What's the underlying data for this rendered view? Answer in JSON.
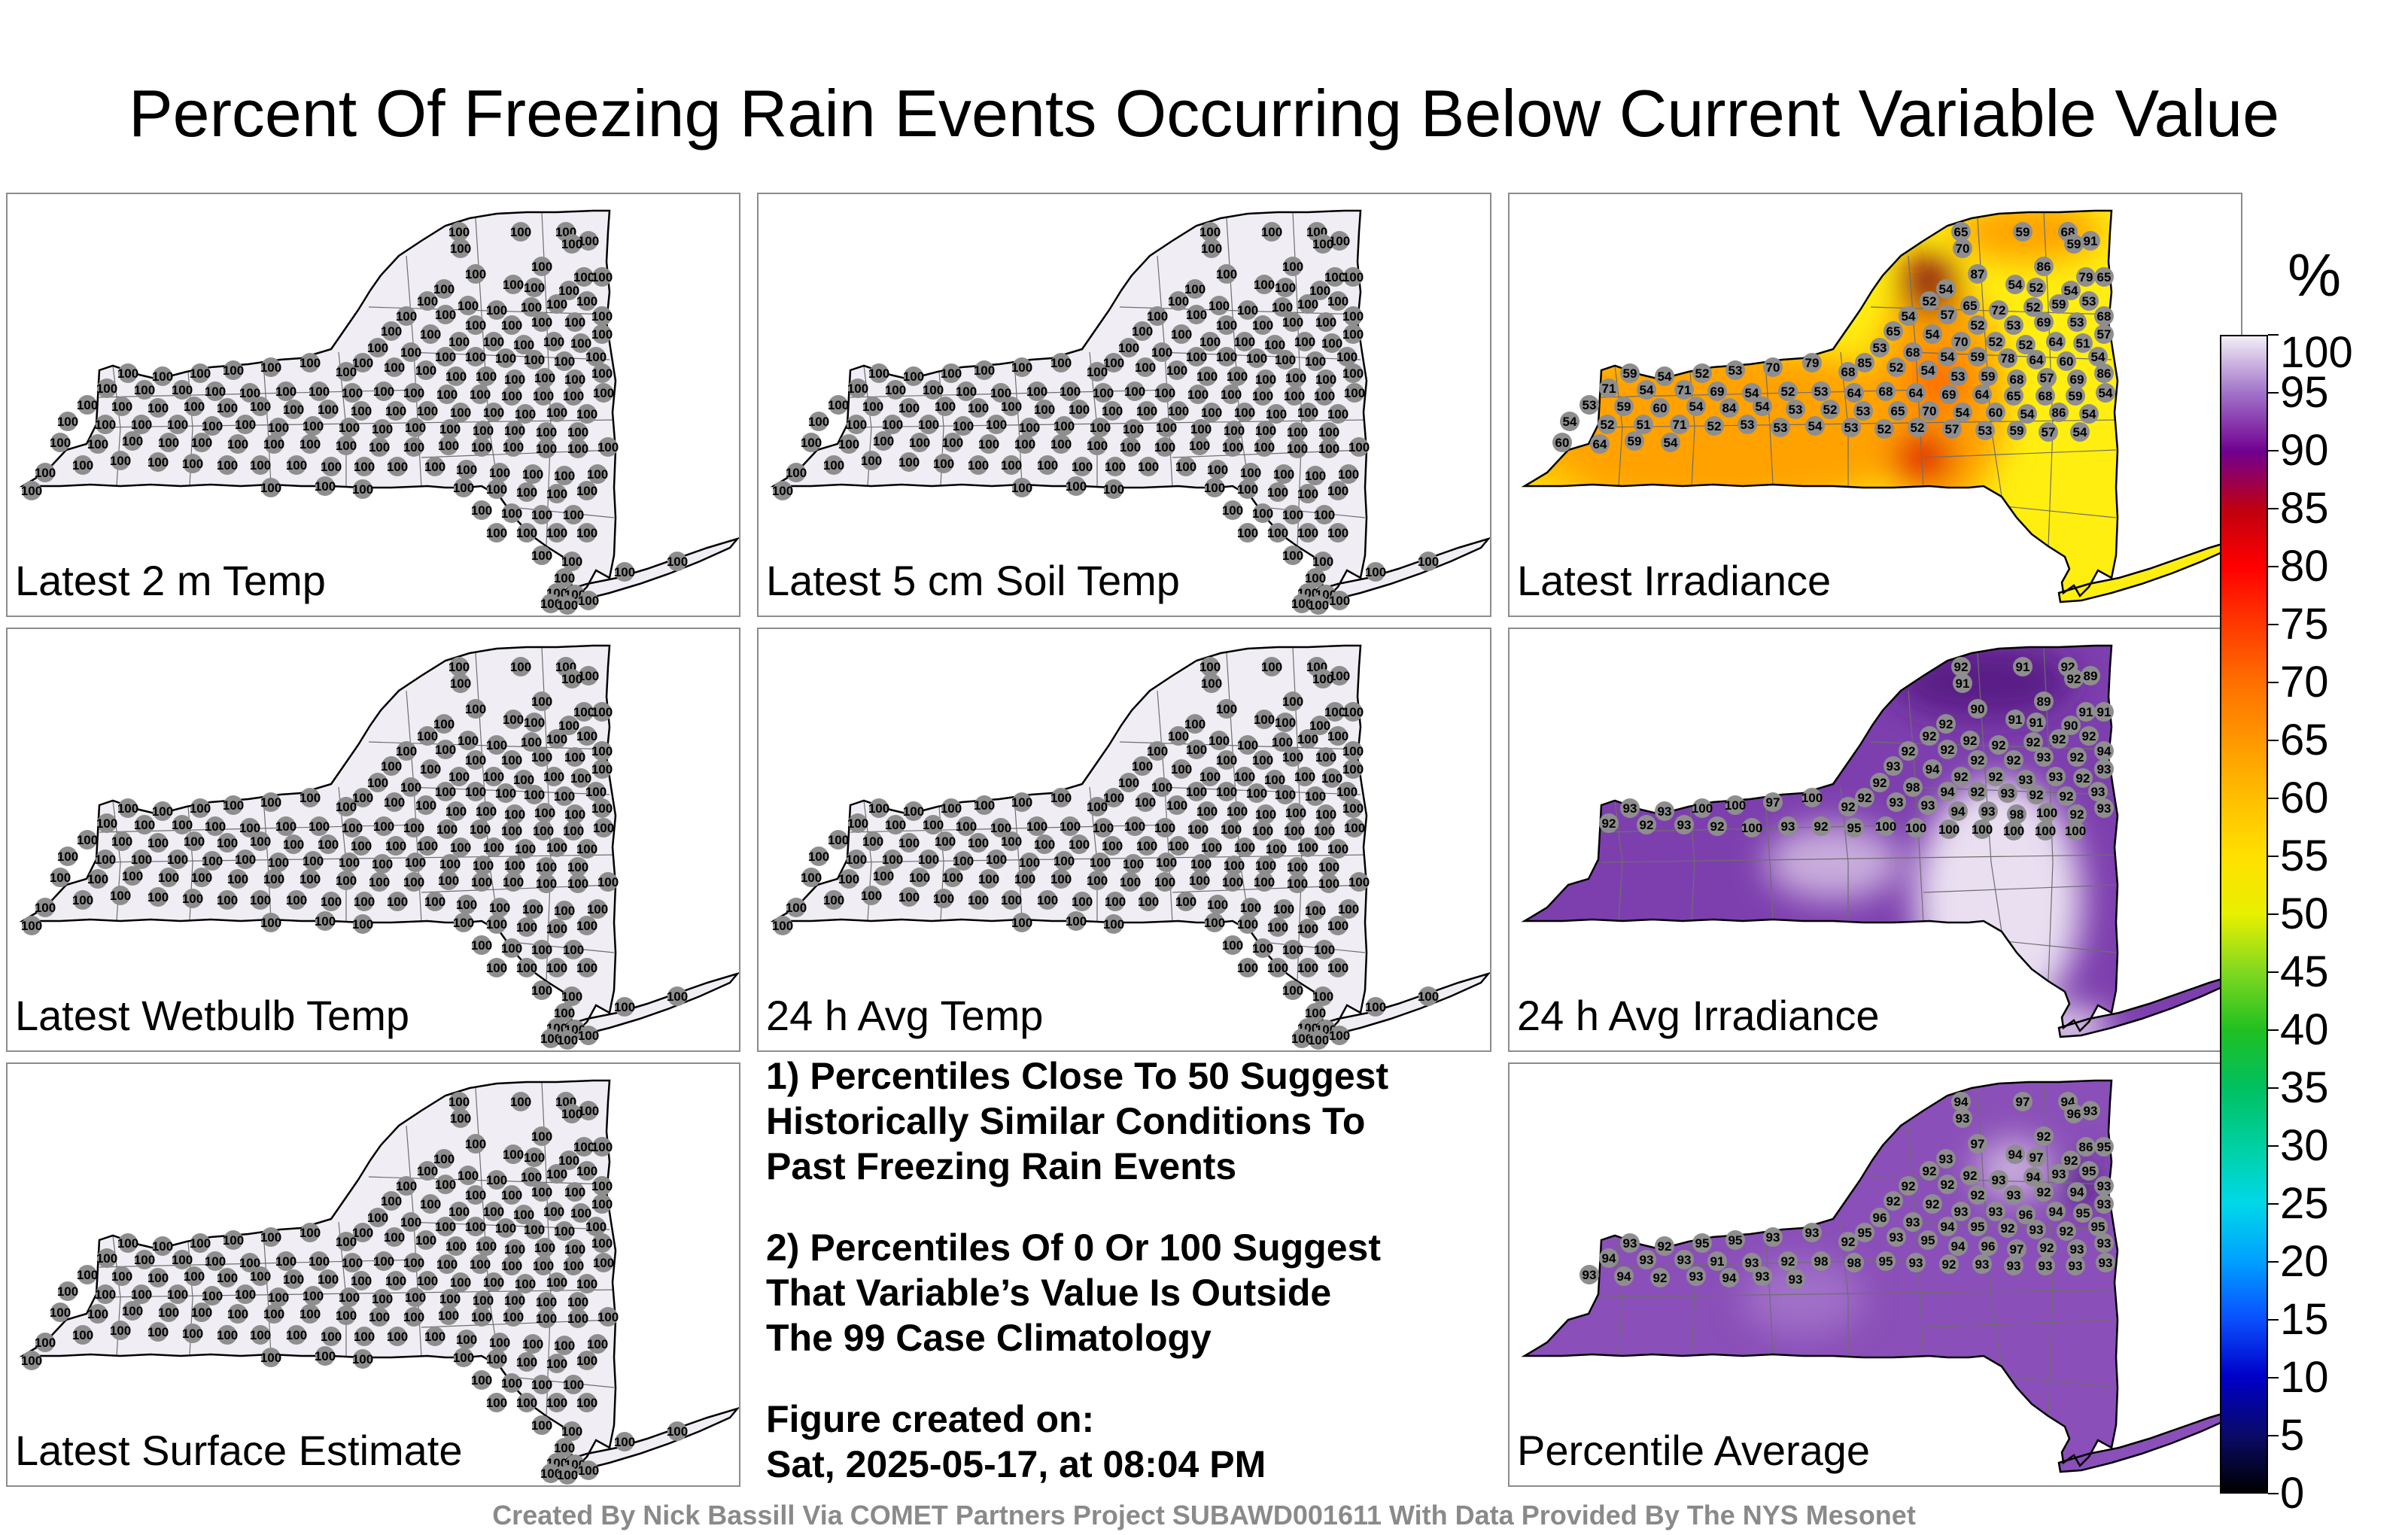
{
  "title": "Percent Of Freezing Rain Events Occurring Below Current Variable Value",
  "panels": [
    {
      "label": "Latest 2 m Temp",
      "mode": "uniform",
      "stations": [
        "100"
      ]
    },
    {
      "label": "Latest 5 cm Soil Temp",
      "mode": "uniform",
      "stations": [
        "100"
      ]
    },
    {
      "label": "Latest Irradiance",
      "mode": "irradiance",
      "stations": [
        "65",
        "59",
        "68",
        "91",
        "70",
        "59",
        "86",
        "87",
        "54",
        "79",
        "54",
        "52",
        "54",
        "65",
        "52",
        "65",
        "72",
        "52",
        "59",
        "53",
        "54",
        "57",
        "52",
        "53",
        "69",
        "53",
        "68",
        "65",
        "54",
        "70",
        "52",
        "52",
        "64",
        "51",
        "57",
        "53",
        "68",
        "54",
        "59",
        "78",
        "64",
        "60",
        "54",
        "85",
        "52",
        "54",
        "53",
        "59",
        "68",
        "57",
        "69",
        "86",
        "59",
        "54",
        "52",
        "53",
        "70",
        "79",
        "68",
        "71",
        "54",
        "71",
        "69",
        "54",
        "52",
        "53",
        "64",
        "68",
        "64",
        "69",
        "64",
        "65",
        "68",
        "59",
        "54",
        "53",
        "59",
        "60",
        "54",
        "84",
        "54",
        "53",
        "52",
        "53",
        "65",
        "70",
        "54",
        "60",
        "54",
        "86",
        "54",
        "54",
        "52",
        "51",
        "71",
        "52",
        "53",
        "53",
        "54",
        "53",
        "52",
        "52",
        "57",
        "53",
        "59",
        "57",
        "54",
        "60",
        "64",
        "59",
        "54"
      ]
    },
    {
      "label": "Latest Wetbulb Temp",
      "mode": "uniform",
      "stations": [
        "100"
      ]
    },
    {
      "label": "24 h Avg Temp",
      "mode": "uniform",
      "stations": [
        "100"
      ]
    },
    {
      "label": "24 h Avg Irradiance",
      "mode": "avgirr",
      "stations": [
        "92",
        "91",
        "92",
        "89",
        "91",
        "92",
        "89",
        "90",
        "91",
        "91",
        "92",
        "91",
        "90",
        "91",
        "92",
        "92",
        "92",
        "92",
        "92",
        "92",
        "92",
        "92",
        "92",
        "92",
        "93",
        "92",
        "94",
        "93",
        "94",
        "92",
        "92",
        "93",
        "93",
        "92",
        "93",
        "92",
        "98",
        "94",
        "92",
        "93",
        "92",
        "92",
        "93",
        "92",
        "93",
        "93",
        "94",
        "93",
        "98",
        "100",
        "92",
        "93",
        "93",
        "93",
        "100",
        "100",
        "97",
        "100",
        "92",
        "92",
        "92",
        "93",
        "92",
        "100",
        "93",
        "92",
        "95",
        "100",
        "100",
        "100",
        "100",
        "100",
        "100",
        "100"
      ]
    },
    {
      "label": "Latest Surface Estimate",
      "mode": "uniform",
      "stations": [
        "100"
      ]
    },
    {
      "label": "Percentile Average",
      "mode": "average",
      "stations": [
        "94",
        "97",
        "94",
        "93",
        "93",
        "96",
        "92",
        "97",
        "94",
        "86",
        "93",
        "97",
        "92",
        "95",
        "92",
        "92",
        "93",
        "94",
        "93",
        "95",
        "92",
        "92",
        "92",
        "93",
        "92",
        "94",
        "93",
        "92",
        "92",
        "93",
        "93",
        "96",
        "94",
        "95",
        "93",
        "96",
        "93",
        "94",
        "95",
        "92",
        "93",
        "92",
        "95",
        "95",
        "93",
        "95",
        "94",
        "96",
        "97",
        "92",
        "93",
        "93",
        "93",
        "92",
        "95",
        "95",
        "93",
        "93",
        "92",
        "94",
        "93",
        "93",
        "91",
        "93",
        "92",
        "98",
        "98",
        "95",
        "93",
        "92",
        "93",
        "93",
        "93",
        "93",
        "93",
        "93",
        "94",
        "92",
        "93",
        "94",
        "93",
        "93"
      ]
    }
  ],
  "notes": {
    "note1": [
      "1) Percentiles Close To 50 Suggest",
      "Historically Similar Conditions To",
      "Past Freezing Rain Events"
    ],
    "note2": [
      "2) Percentiles Of 0 Or 100 Suggest",
      "That Variable’s Value Is Outside",
      "The 99 Case Climatology"
    ],
    "created": [
      "Figure created on:",
      "Sat, 2025-05-17, at 08:04 PM"
    ]
  },
  "colorbar": {
    "unit": "%",
    "ticks": [
      "0",
      "5",
      "10",
      "15",
      "20",
      "25",
      "30",
      "35",
      "40",
      "45",
      "50",
      "55",
      "60",
      "65",
      "70",
      "75",
      "80",
      "85",
      "90",
      "95",
      "100"
    ]
  },
  "credit": "Created By Nick Bassill Via COMET Partners Project SUBAWD001611 With Data Provided By The NYS Mesonet",
  "colors": {
    "uniform_fill": "#f1edf5",
    "avg_fill": "#8a4fb8",
    "dark_purple": "#5a1b86",
    "yellow": "#ffee10",
    "orange": "#ffa200",
    "dark_orange": "#ff6a00",
    "red": "#e01000",
    "dark_red": "#8a0010",
    "station": "#8e8e8e"
  }
}
